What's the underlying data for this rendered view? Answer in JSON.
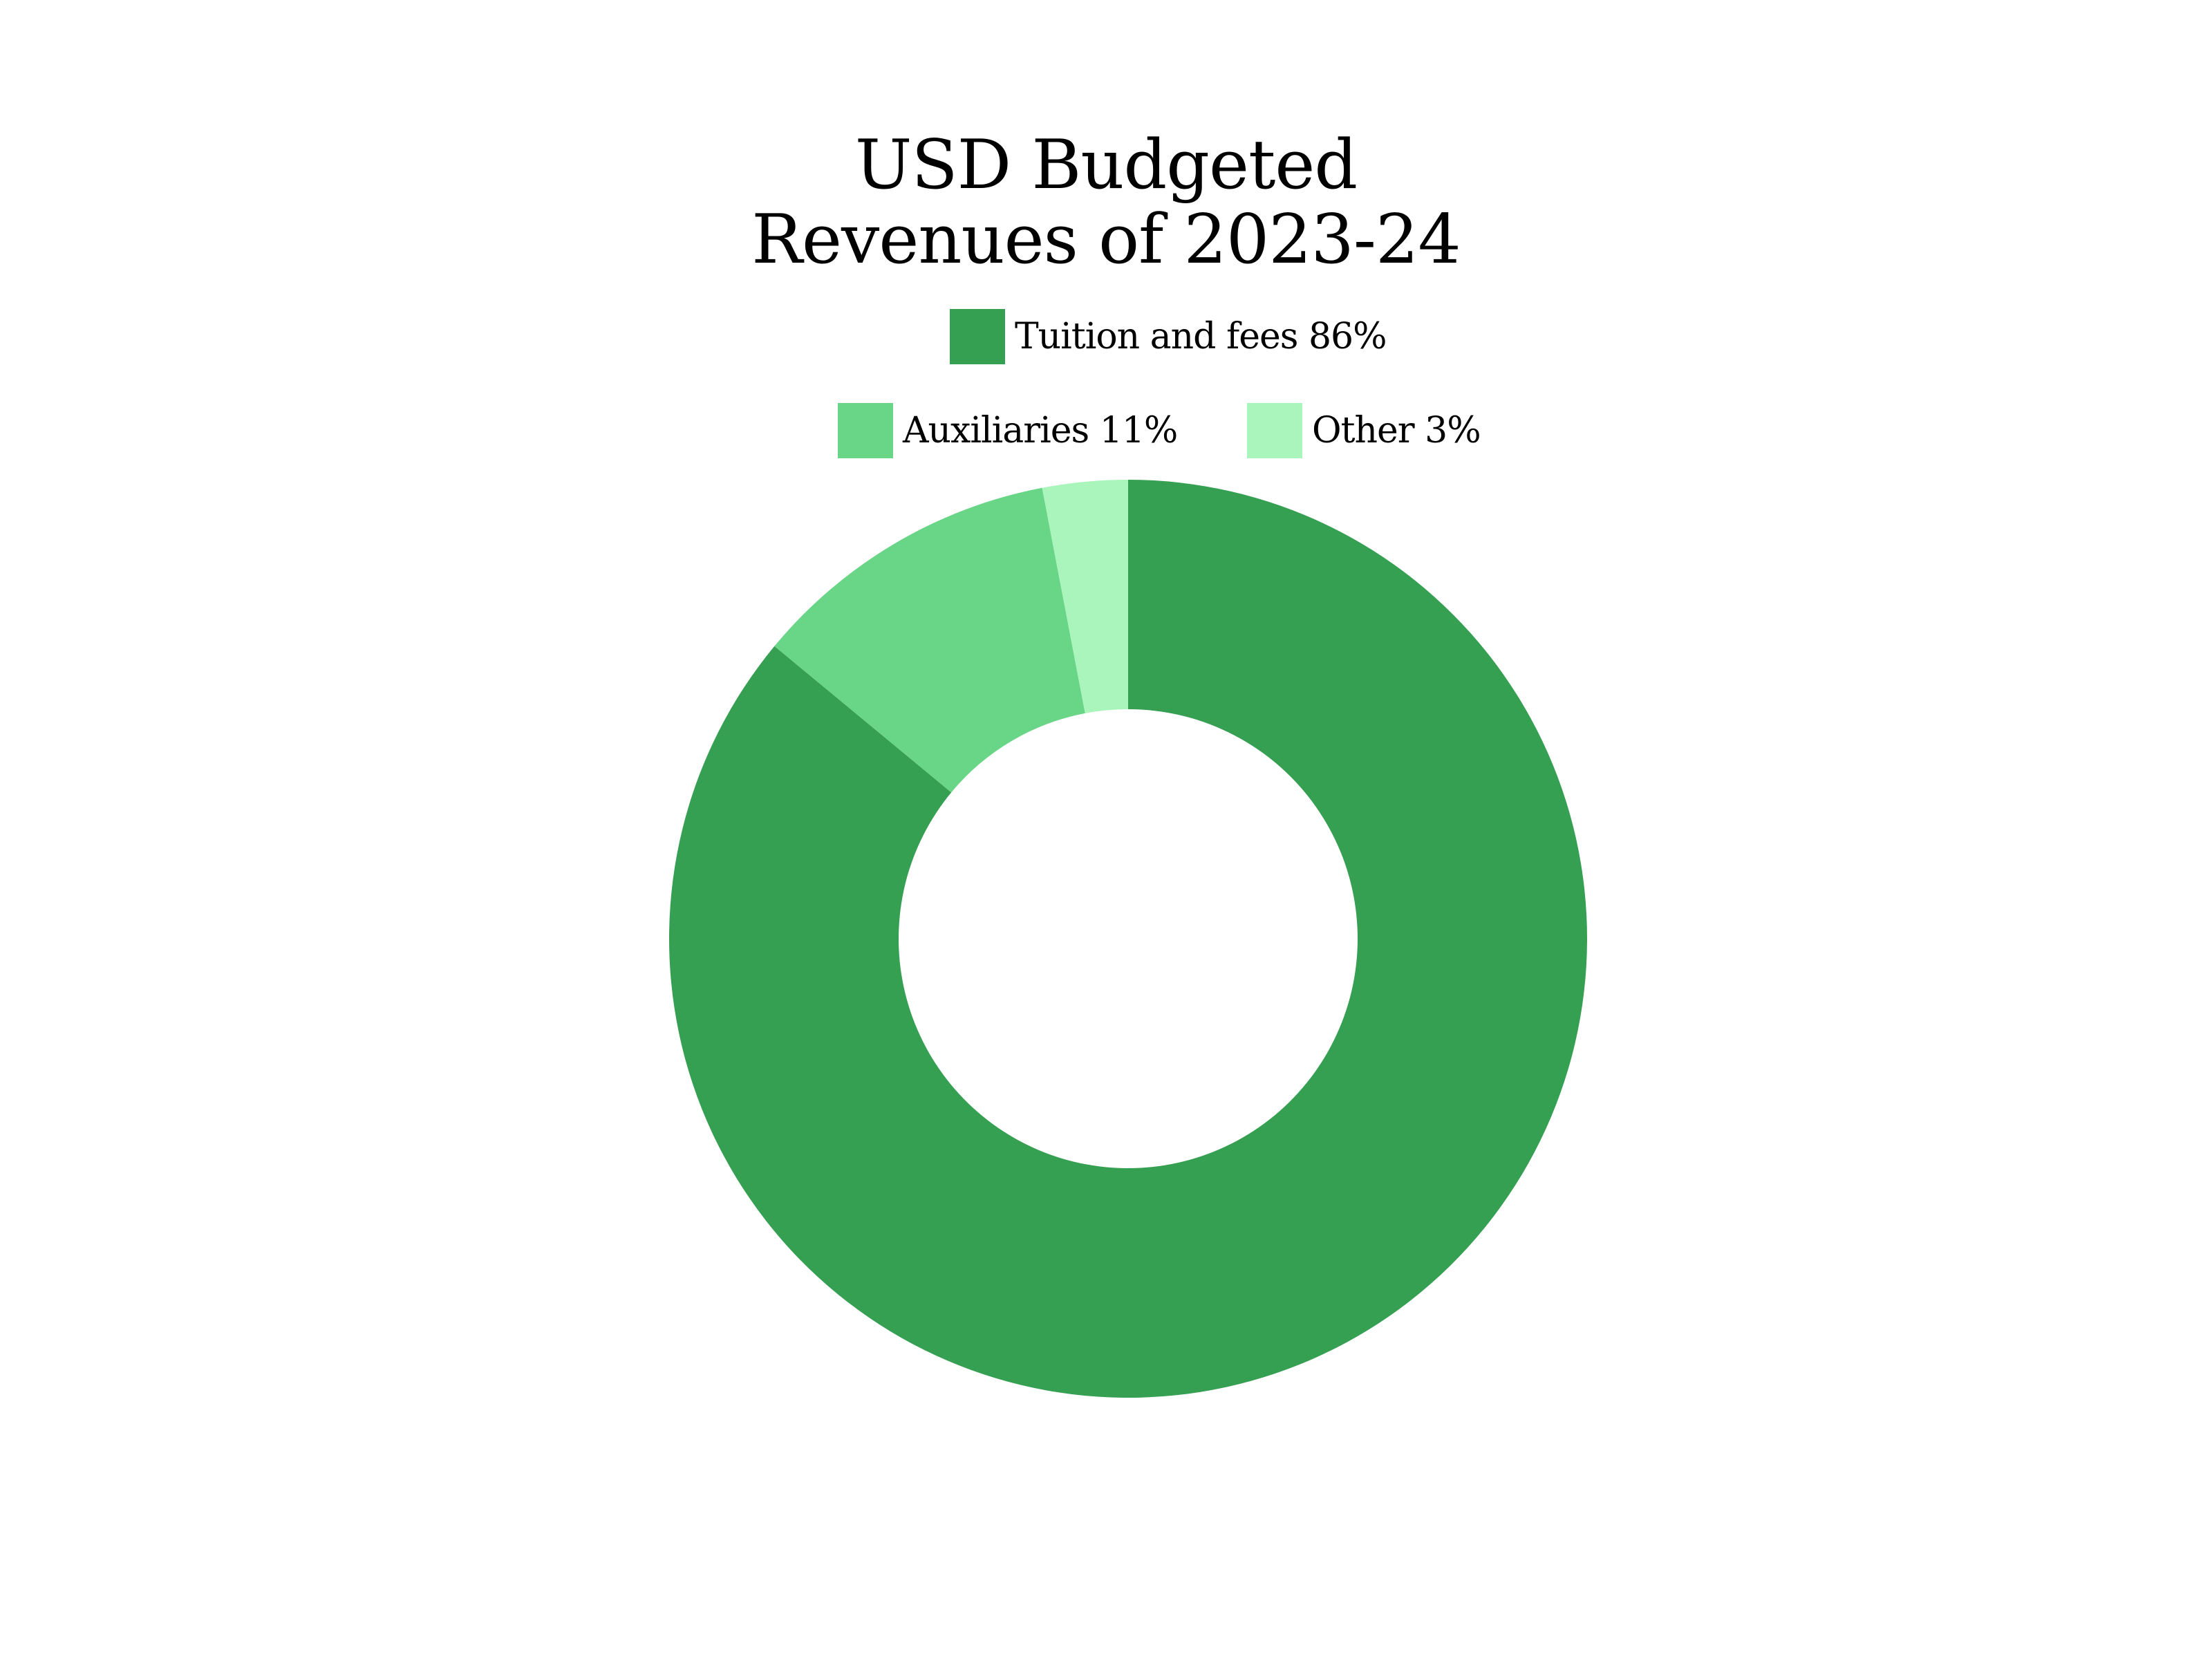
{
  "chart_data": {
    "type": "pie",
    "subtype": "donut",
    "title_lines": [
      "USD Budgeted",
      "Revenues of 2023-24"
    ],
    "categories": [
      "Tuition and fees",
      "Auxiliaries",
      "Other"
    ],
    "values": [
      86,
      11,
      3
    ],
    "unit": "%",
    "legend_labels": [
      "Tuition and fees 86%",
      "Auxiliaries 11%",
      "Other 3%"
    ],
    "colors": [
      "#359f52",
      "#69d586",
      "#aaf5bc"
    ],
    "start_angle_deg": 0,
    "direction": "clockwise",
    "legend_placement": "top"
  }
}
